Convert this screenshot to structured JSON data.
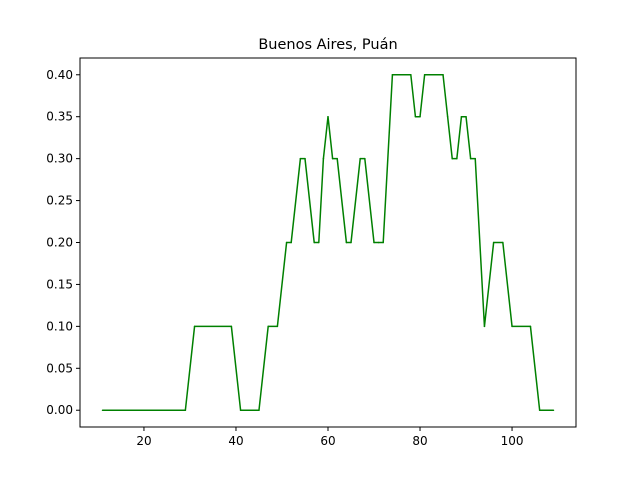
{
  "chart_data": {
    "type": "line",
    "title": "Buenos Aires, Puán",
    "xlabel": "",
    "ylabel": "",
    "xlim": [
      6.1,
      113.9
    ],
    "ylim": [
      -0.02,
      0.42
    ],
    "xticks": [
      20,
      40,
      60,
      80,
      100
    ],
    "yticks": [
      0.0,
      0.05,
      0.1,
      0.15,
      0.2,
      0.25,
      0.3,
      0.35,
      0.4
    ],
    "ytick_labels": [
      "0.00",
      "0.05",
      "0.10",
      "0.15",
      "0.20",
      "0.25",
      "0.30",
      "0.35",
      "0.40"
    ],
    "grid": false,
    "line_color": "#008000",
    "series": [
      {
        "x": [
          11,
          29,
          31,
          39,
          41,
          45,
          47,
          49,
          51,
          52,
          54,
          55,
          57,
          58,
          59,
          60,
          61,
          62,
          64,
          65,
          67,
          68,
          70,
          71,
          72,
          74,
          75,
          76,
          77,
          78,
          79,
          80,
          81,
          82,
          83,
          84,
          85,
          86,
          87,
          88,
          89,
          90,
          91,
          92,
          94,
          96,
          98,
          100,
          104,
          106,
          109
        ],
        "y": [
          0.0,
          0.0,
          0.1,
          0.1,
          0.0,
          0.0,
          0.1,
          0.1,
          0.2,
          0.2,
          0.3,
          0.3,
          0.2,
          0.2,
          0.3,
          0.35,
          0.3,
          0.3,
          0.2,
          0.2,
          0.3,
          0.3,
          0.2,
          0.2,
          0.2,
          0.4,
          0.4,
          0.4,
          0.4,
          0.4,
          0.35,
          0.35,
          0.4,
          0.4,
          0.4,
          0.4,
          0.4,
          0.35,
          0.3,
          0.3,
          0.35,
          0.35,
          0.3,
          0.3,
          0.1,
          0.2,
          0.2,
          0.1,
          0.1,
          0.0,
          0.0
        ]
      }
    ]
  }
}
